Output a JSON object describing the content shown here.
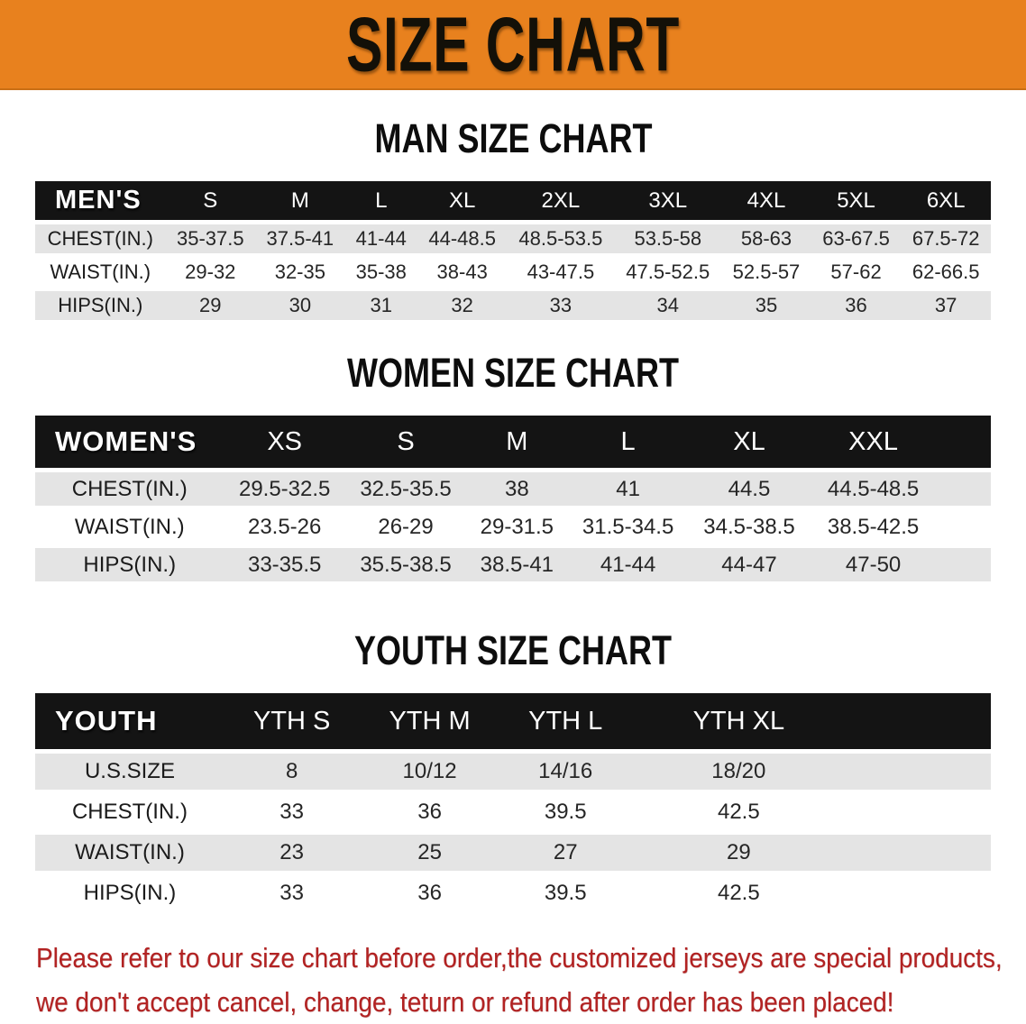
{
  "banner": {
    "title": "SIZE CHART"
  },
  "sections": [
    {
      "heading": "MAN SIZE CHART",
      "table": {
        "header_label": "MEN'S",
        "columns": [
          "S",
          "M",
          "L",
          "XL",
          "2XL",
          "3XL",
          "4XL",
          "5XL",
          "6XL"
        ],
        "rows": [
          {
            "label": "CHEST(IN.)",
            "values": [
              "35-37.5",
              "37.5-41",
              "41-44",
              "44-48.5",
              "48.5-53.5",
              "53.5-58",
              "58-63",
              "63-67.5",
              "67.5-72"
            ]
          },
          {
            "label": "WAIST(IN.)",
            "values": [
              "29-32",
              "32-35",
              "35-38",
              "38-43",
              "43-47.5",
              "47.5-52.5",
              "52.5-57",
              "57-62",
              "62-66.5"
            ]
          },
          {
            "label": "HIPS(IN.)",
            "values": [
              "29",
              "30",
              "31",
              "32",
              "33",
              "34",
              "35",
              "36",
              "37"
            ]
          }
        ]
      }
    },
    {
      "heading": "WOMEN SIZE CHART",
      "table": {
        "header_label": "WOMEN'S",
        "columns": [
          "XS",
          "S",
          "M",
          "L",
          "XL",
          "XXL"
        ],
        "rows": [
          {
            "label": "CHEST(IN.)",
            "values": [
              "29.5-32.5",
              "32.5-35.5",
              "38",
              "41",
              "44.5",
              "44.5-48.5"
            ]
          },
          {
            "label": "WAIST(IN.)",
            "values": [
              "23.5-26",
              "26-29",
              "29-31.5",
              "31.5-34.5",
              "34.5-38.5",
              "38.5-42.5"
            ]
          },
          {
            "label": "HIPS(IN.)",
            "values": [
              "33-35.5",
              "35.5-38.5",
              "38.5-41",
              "41-44",
              "44-47",
              "47-50"
            ]
          }
        ]
      }
    },
    {
      "heading": "YOUTH SIZE CHART",
      "table": {
        "header_label": "YOUTH",
        "columns": [
          "YTH S",
          "YTH M",
          "YTH L",
          "YTH XL"
        ],
        "rows": [
          {
            "label": "U.S.SIZE",
            "values": [
              "8",
              "10/12",
              "14/16",
              "18/20"
            ]
          },
          {
            "label": "CHEST(IN.)",
            "values": [
              "33",
              "36",
              "39.5",
              "42.5"
            ]
          },
          {
            "label": "WAIST(IN.)",
            "values": [
              "23",
              "25",
              "27",
              "29"
            ]
          },
          {
            "label": "HIPS(IN.)",
            "values": [
              "33",
              "36",
              "39.5",
              "42.5"
            ]
          }
        ]
      }
    }
  ],
  "footer": {
    "lines": [
      "Please refer to our size chart before order,the customized jerseys are special products,",
      "we don't accept cancel, change, teturn or refund after order has been placed!"
    ]
  },
  "colors": {
    "banner_orange": "#E8811E",
    "header_black": "#141414",
    "stripe_gray": "#E4E4E4",
    "footer_red": "#B22222"
  }
}
